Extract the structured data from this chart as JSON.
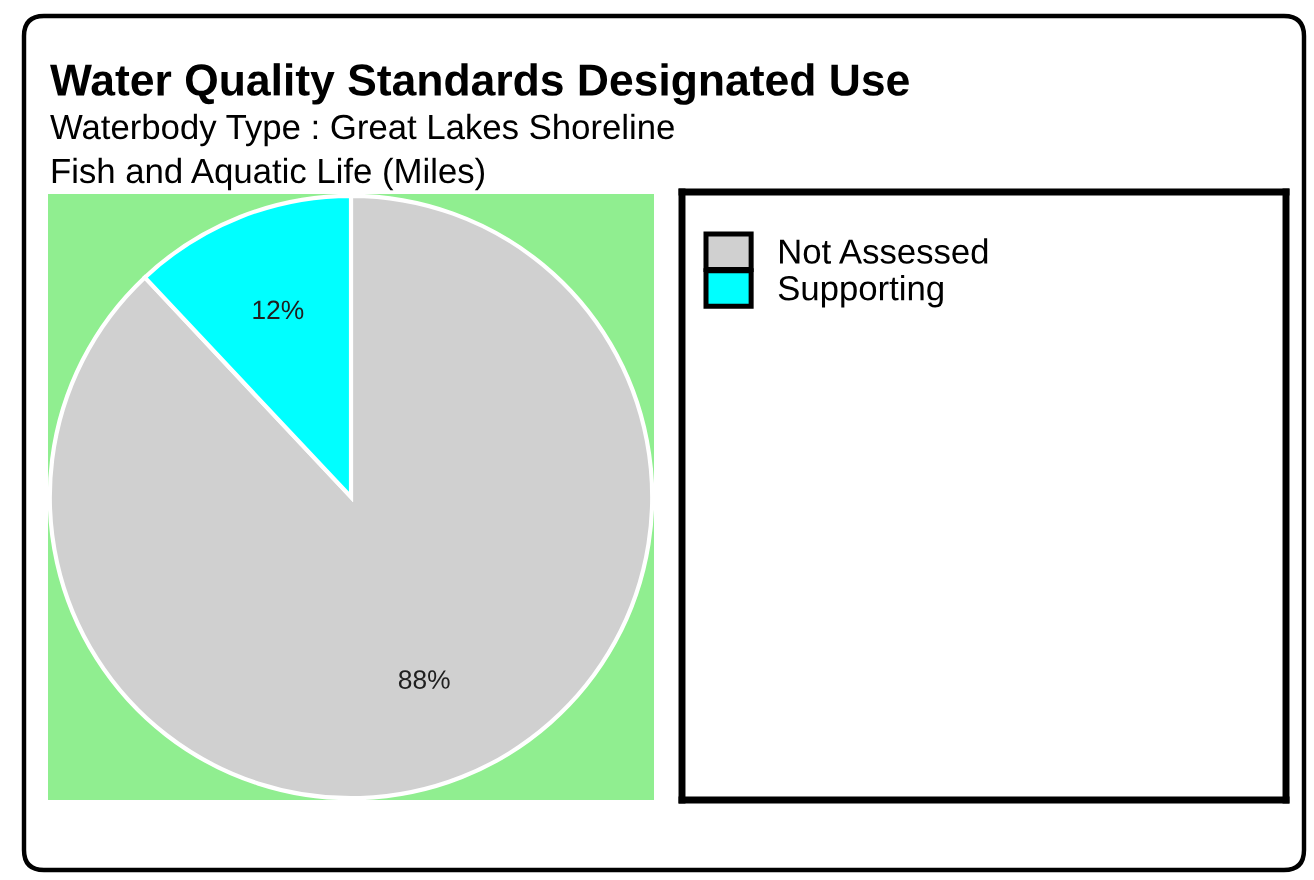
{
  "chart_data": {
    "type": "pie",
    "title": "Water Quality Standards Designated Use",
    "subtitle": "Waterbody Type : Great Lakes Shoreline",
    "annotations": [
      "Fish and Aquatic Life (Miles)"
    ],
    "categories": [
      "Not Assessed",
      "Supporting"
    ],
    "values": [
      88,
      12
    ],
    "colors": [
      "#d0d0d0",
      "#00ffff"
    ],
    "value_labels": [
      "88%",
      "12%"
    ],
    "legend": "right"
  }
}
